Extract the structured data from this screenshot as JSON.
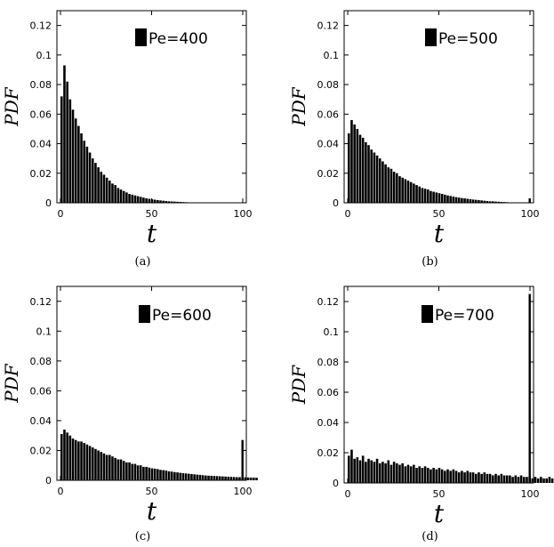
{
  "chart_data": [
    {
      "type": "bar",
      "panel": "(a)",
      "legend": "Pe=400",
      "xlabel": "t",
      "ylabel": "PDF",
      "xlim": [
        0,
        100
      ],
      "ylim": [
        0,
        0.13
      ],
      "xticks": [
        "0",
        "50",
        "100"
      ],
      "yticks": [
        "0",
        "0.02",
        "0.04",
        "0.06",
        "0.08",
        "0.1",
        "0.12"
      ],
      "values": [
        0.072,
        0.093,
        0.082,
        0.07,
        0.063,
        0.057,
        0.052,
        0.047,
        0.042,
        0.038,
        0.034,
        0.03,
        0.027,
        0.024,
        0.021,
        0.019,
        0.017,
        0.015,
        0.013,
        0.012,
        0.01,
        0.009,
        0.008,
        0.007,
        0.006,
        0.0055,
        0.005,
        0.0045,
        0.004,
        0.0035,
        0.003,
        0.0027,
        0.0024,
        0.0021,
        0.0018,
        0.0016,
        0.0014,
        0.0012,
        0.001,
        0.0009,
        0.0008,
        0.0007,
        0.0006,
        0.0005,
        0.0004,
        0.0003,
        0.0003,
        0.0002,
        0.0002,
        0.0001
      ]
    },
    {
      "type": "bar",
      "panel": "(b)",
      "legend": "Pe=500",
      "xlabel": "t",
      "ylabel": "PDF",
      "xlim": [
        0,
        100
      ],
      "ylim": [
        0,
        0.13
      ],
      "xticks": [
        "0",
        "50",
        "100"
      ],
      "yticks": [
        "0",
        "0.02",
        "0.04",
        "0.06",
        "0.08",
        "0.1",
        "0.12"
      ],
      "values": [
        0.047,
        0.056,
        0.053,
        0.05,
        0.046,
        0.044,
        0.041,
        0.039,
        0.036,
        0.034,
        0.032,
        0.03,
        0.028,
        0.026,
        0.024,
        0.023,
        0.021,
        0.02,
        0.018,
        0.017,
        0.016,
        0.015,
        0.014,
        0.013,
        0.012,
        0.011,
        0.01,
        0.0095,
        0.009,
        0.008,
        0.0075,
        0.007,
        0.0065,
        0.006,
        0.0055,
        0.005,
        0.0046,
        0.0042,
        0.0038,
        0.0035,
        0.0032,
        0.003,
        0.0027,
        0.0025,
        0.0022,
        0.002,
        0.0018,
        0.0016,
        0.0014,
        0.0012,
        0.001,
        0.001,
        0.0008,
        0.0007,
        0.0006,
        0.0005,
        0.0004,
        0.0003,
        0.0003,
        0.0002,
        0.0002,
        0.0002,
        0.0001
      ],
      "spike": {
        "x": 100,
        "value": 0.003
      }
    },
    {
      "type": "bar",
      "panel": "(c)",
      "legend": "Pe=600",
      "xlabel": "t",
      "ylabel": "PDF",
      "xlim": [
        0,
        100
      ],
      "ylim": [
        0,
        0.13
      ],
      "xticks": [
        "0",
        "50",
        "100"
      ],
      "yticks": [
        "0",
        "0.02",
        "0.04",
        "0.06",
        "0.08",
        "0.1",
        "0.12"
      ],
      "values": [
        0.031,
        0.034,
        0.032,
        0.03,
        0.028,
        0.027,
        0.026,
        0.026,
        0.025,
        0.024,
        0.023,
        0.022,
        0.021,
        0.02,
        0.019,
        0.018,
        0.017,
        0.017,
        0.016,
        0.015,
        0.014,
        0.014,
        0.013,
        0.012,
        0.012,
        0.011,
        0.011,
        0.01,
        0.01,
        0.009,
        0.009,
        0.0085,
        0.008,
        0.0078,
        0.0075,
        0.007,
        0.0068,
        0.0065,
        0.006,
        0.0058,
        0.0055,
        0.0053,
        0.005,
        0.0048,
        0.0046,
        0.0044,
        0.0042,
        0.004,
        0.0038,
        0.0036,
        0.0034,
        0.0032,
        0.0031,
        0.003,
        0.0029,
        0.0028,
        0.0027,
        0.0026,
        0.0025,
        0.0024,
        0.0023,
        0.0022,
        0.0021,
        0.0021,
        0.002,
        0.002,
        0.0019,
        0.0018,
        0.0018,
        0.0017
      ],
      "spike": {
        "x": 100,
        "value": 0.027
      }
    },
    {
      "type": "bar",
      "panel": "(d)",
      "legend": "Pe=700",
      "xlabel": "t",
      "ylabel": "PDF",
      "xlim": [
        0,
        100
      ],
      "ylim": [
        0,
        0.13
      ],
      "xticks": [
        "0",
        "50",
        "100"
      ],
      "yticks": [
        "0",
        "0.02",
        "0.04",
        "0.06",
        "0.08",
        "0.1",
        "0.12"
      ],
      "values": [
        0.018,
        0.022,
        0.016,
        0.017,
        0.015,
        0.018,
        0.014,
        0.016,
        0.015,
        0.014,
        0.016,
        0.013,
        0.014,
        0.013,
        0.015,
        0.012,
        0.014,
        0.013,
        0.012,
        0.013,
        0.011,
        0.012,
        0.011,
        0.012,
        0.01,
        0.011,
        0.01,
        0.011,
        0.01,
        0.009,
        0.01,
        0.009,
        0.01,
        0.009,
        0.008,
        0.009,
        0.008,
        0.009,
        0.008,
        0.007,
        0.008,
        0.007,
        0.008,
        0.007,
        0.007,
        0.006,
        0.007,
        0.006,
        0.007,
        0.006,
        0.006,
        0.005,
        0.006,
        0.005,
        0.006,
        0.005,
        0.005,
        0.005,
        0.004,
        0.005,
        0.004,
        0.005,
        0.004,
        0.004,
        0.004,
        0.003,
        0.004,
        0.003,
        0.004,
        0.003,
        0.003,
        0.004,
        0.003,
        0.003,
        0.003
      ],
      "spike": {
        "x": 100,
        "value": 0.125
      }
    }
  ]
}
